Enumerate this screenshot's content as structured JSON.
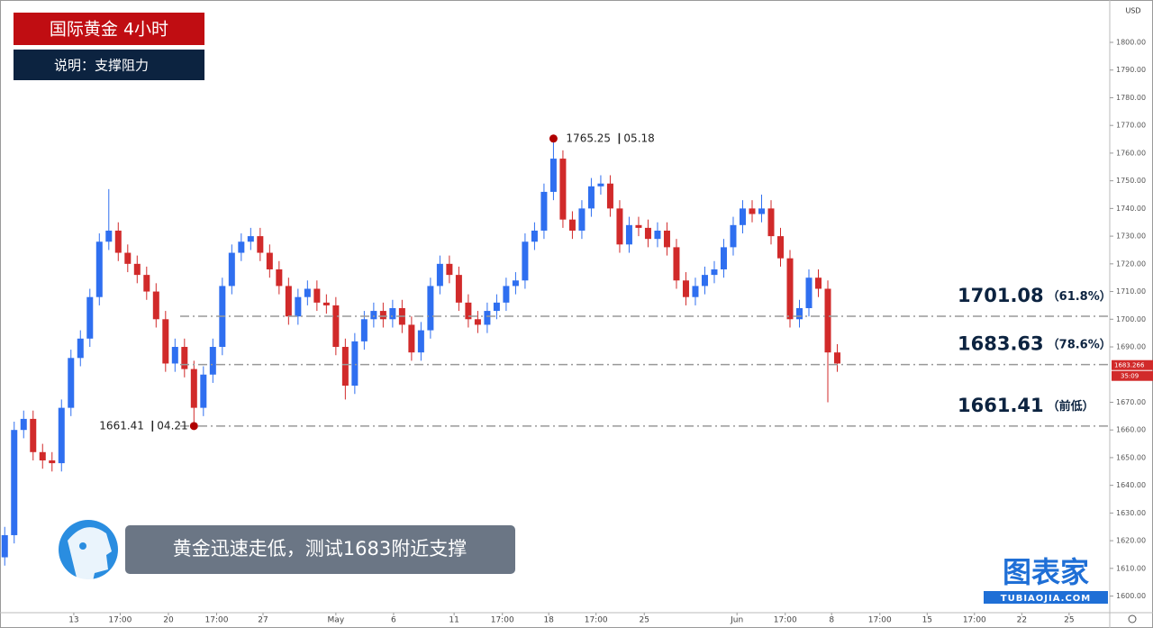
{
  "chart_data": {
    "type": "candlestick",
    "title": "国际黄金  4小时",
    "subtitle": "说明：支撑阻力",
    "caption": "黄金迅速走低，测试1683附近支撑",
    "brand": "图表家",
    "brand_url": "TUBIAOJIA.COM",
    "currency": "USD",
    "up_color": "#2f6ff0",
    "down_color": "#d12a2a",
    "last_price": 1683.266,
    "countdown": "35:09",
    "open": [
      1614,
      1622,
      1660,
      1664,
      1652,
      1649,
      1648,
      1668,
      1686,
      1693,
      1708,
      1728,
      1732,
      1724,
      1720,
      1716,
      1710,
      1700,
      1684,
      1690,
      1682,
      1668,
      1680,
      1690,
      1712,
      1724,
      1728,
      1730,
      1724,
      1718,
      1712,
      1701,
      1708,
      1711,
      1706,
      1705,
      1690,
      1676,
      1692,
      1700,
      1703,
      1700,
      1704,
      1698,
      1688,
      1696,
      1712,
      1720,
      1716,
      1706,
      1700,
      1698,
      1703,
      1706,
      1712,
      1714,
      1728,
      1732,
      1746,
      1758,
      1736,
      1732,
      1740,
      1748,
      1749,
      1740,
      1727,
      1734,
      1733,
      1729,
      1732,
      1726,
      1714,
      1708,
      1712,
      1716,
      1718,
      1726,
      1734,
      1740,
      1738,
      1740,
      1730,
      1722,
      1700,
      1704,
      1715,
      1711,
      1688
    ],
    "high": [
      1625,
      1663,
      1667,
      1667,
      1655,
      1652,
      1671,
      1689,
      1696,
      1711,
      1731,
      1747,
      1735,
      1727,
      1723,
      1719,
      1713,
      1703,
      1693,
      1693,
      1685,
      1683,
      1693,
      1715,
      1727,
      1731,
      1733,
      1733,
      1727,
      1721,
      1715,
      1711,
      1714,
      1714,
      1709,
      1708,
      1693,
      1695,
      1703,
      1706,
      1706,
      1707,
      1707,
      1701,
      1699,
      1715,
      1723,
      1723,
      1719,
      1709,
      1703,
      1706,
      1709,
      1715,
      1717,
      1731,
      1735,
      1749,
      1765.25,
      1761,
      1739,
      1743,
      1751,
      1752,
      1752,
      1743,
      1737,
      1737,
      1736,
      1735,
      1735,
      1729,
      1717,
      1715,
      1719,
      1721,
      1729,
      1737,
      1743,
      1743,
      1745,
      1743,
      1733,
      1725,
      1707,
      1718,
      1718,
      1714,
      1691
    ],
    "low": [
      1611,
      1619,
      1657,
      1649,
      1646,
      1645,
      1645,
      1665,
      1683,
      1690,
      1705,
      1725,
      1721,
      1717,
      1713,
      1707,
      1697,
      1681,
      1681,
      1679,
      1661.41,
      1665,
      1677,
      1687,
      1709,
      1721,
      1725,
      1721,
      1715,
      1709,
      1698,
      1698,
      1705,
      1703,
      1702,
      1687,
      1671,
      1673,
      1689,
      1697,
      1697,
      1697,
      1695,
      1685,
      1685,
      1693,
      1709,
      1713,
      1703,
      1697,
      1695,
      1695,
      1700,
      1703,
      1709,
      1711,
      1725,
      1729,
      1743,
      1733,
      1729,
      1729,
      1737,
      1745,
      1737,
      1724,
      1724,
      1730,
      1726,
      1726,
      1723,
      1711,
      1705,
      1705,
      1709,
      1713,
      1715,
      1723,
      1731,
      1735,
      1735,
      1727,
      1719,
      1697,
      1697,
      1701,
      1708,
      1670,
      1681
    ],
    "close": [
      1622,
      1660,
      1664,
      1652,
      1649,
      1648,
      1668,
      1686,
      1693,
      1708,
      1728,
      1732,
      1724,
      1720,
      1716,
      1710,
      1700,
      1684,
      1690,
      1682,
      1668,
      1680,
      1690,
      1712,
      1724,
      1728,
      1730,
      1724,
      1718,
      1712,
      1701,
      1708,
      1711,
      1706,
      1705,
      1690,
      1676,
      1692,
      1700,
      1703,
      1700,
      1704,
      1698,
      1688,
      1696,
      1712,
      1720,
      1716,
      1706,
      1700,
      1698,
      1703,
      1706,
      1712,
      1714,
      1728,
      1732,
      1746,
      1758,
      1736,
      1732,
      1740,
      1748,
      1749,
      1740,
      1727,
      1734,
      1733,
      1729,
      1732,
      1726,
      1714,
      1708,
      1712,
      1716,
      1718,
      1726,
      1734,
      1740,
      1738,
      1740,
      1730,
      1722,
      1700,
      1704,
      1715,
      1711,
      1688,
      1684
    ],
    "xlim": [
      -0.5,
      116.8
    ],
    "xticks": [
      {
        "value": 7.3,
        "label": "13"
      },
      {
        "value": 12.2,
        "label": "17:00"
      },
      {
        "value": 17.3,
        "label": "20"
      },
      {
        "value": 22.4,
        "label": "17:00"
      },
      {
        "value": 27.3,
        "label": "27"
      },
      {
        "value": 35,
        "label": "May"
      },
      {
        "value": 41.1,
        "label": "6"
      },
      {
        "value": 47.5,
        "label": "11"
      },
      {
        "value": 52.6,
        "label": "17:00"
      },
      {
        "value": 57.5,
        "label": "18"
      },
      {
        "value": 62.5,
        "label": "17:00"
      },
      {
        "value": 67.6,
        "label": "25"
      },
      {
        "value": 77.4,
        "label": "Jun"
      },
      {
        "value": 82.5,
        "label": "17:00"
      },
      {
        "value": 87.4,
        "label": "8"
      },
      {
        "value": 92.5,
        "label": "17:00"
      },
      {
        "value": 97.5,
        "label": "15"
      },
      {
        "value": 102.5,
        "label": "17:00"
      },
      {
        "value": 107.5,
        "label": "22"
      },
      {
        "value": 112.5,
        "label": "25"
      }
    ],
    "ylim": [
      1594,
      1815.3
    ],
    "yticks": [
      {
        "value": 1600,
        "label": "1600.00"
      },
      {
        "value": 1610,
        "label": "1610.00"
      },
      {
        "value": 1620,
        "label": "1620.00"
      },
      {
        "value": 1630,
        "label": "1630.00"
      },
      {
        "value": 1640,
        "label": "1640.00"
      },
      {
        "value": 1650,
        "label": "1650.00"
      },
      {
        "value": 1660,
        "label": "1660.00"
      },
      {
        "value": 1670,
        "label": "1670.00"
      },
      {
        "value": 1690,
        "label": "1690.00"
      },
      {
        "value": 1700,
        "label": "1700.00"
      },
      {
        "value": 1710,
        "label": "1710.00"
      },
      {
        "value": 1720,
        "label": "1720.00"
      },
      {
        "value": 1730,
        "label": "1730.00"
      },
      {
        "value": 1740,
        "label": "1740.00"
      },
      {
        "value": 1750,
        "label": "1750.00"
      },
      {
        "value": 1760,
        "label": "1760.00"
      },
      {
        "value": 1770,
        "label": "1770.00"
      },
      {
        "value": 1780,
        "label": "1780.00"
      },
      {
        "value": 1790,
        "label": "1790.00"
      },
      {
        "value": 1800,
        "label": "1800.00"
      }
    ],
    "levels": [
      {
        "value": 1701.08,
        "note": "（61.8%）"
      },
      {
        "value": 1683.63,
        "note": "（78.6%）"
      },
      {
        "value": 1661.41,
        "note": "（前低）"
      }
    ],
    "markers": [
      {
        "index": 58,
        "price": 1765.25,
        "date": "05.18"
      },
      {
        "index": 20,
        "price": 1661.41,
        "date": "04.21"
      }
    ]
  }
}
